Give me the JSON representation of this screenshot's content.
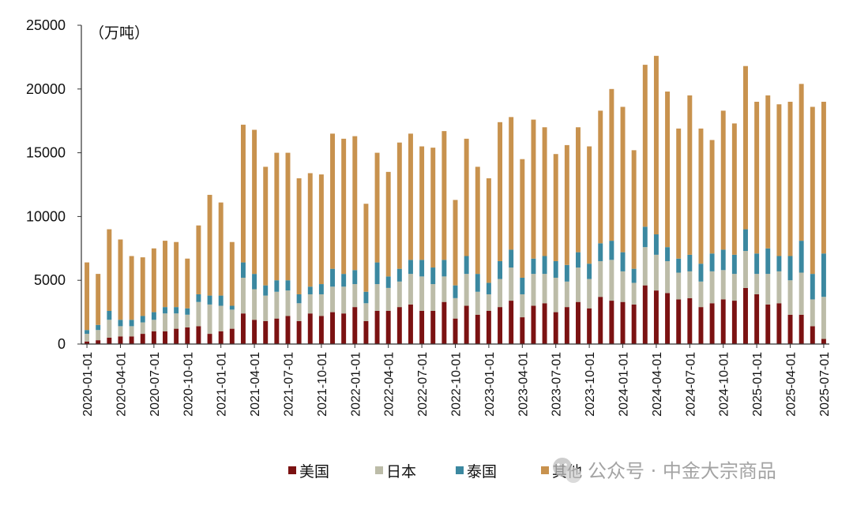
{
  "chart_data": {
    "type": "bar",
    "stacked": true,
    "unit_label": "（万吨）",
    "ylim": [
      0,
      25000
    ],
    "y_ticks": [
      "0",
      "5000",
      "10000",
      "15000",
      "20000",
      "25000"
    ],
    "x_tick_labels": [
      "2020-01-01",
      "2020-04-01",
      "2020-07-01",
      "2020-10-01",
      "2021-01-01",
      "2021-04-01",
      "2021-07-01",
      "2021-10-01",
      "2022-01-01",
      "2022-04-01",
      "2022-07-01",
      "2022-10-01",
      "2023-01-01",
      "2023-04-01",
      "2023-07-01",
      "2023-10-01",
      "2024-01-01",
      "2024-04-01",
      "2024-07-01",
      "2024-10-01",
      "2025-01-01",
      "2025-04-01",
      "2025-07-01"
    ],
    "categories": [
      "2020-01",
      "2020-02",
      "2020-03",
      "2020-04",
      "2020-05",
      "2020-06",
      "2020-07",
      "2020-08",
      "2020-09",
      "2020-10",
      "2020-11",
      "2020-12",
      "2021-01",
      "2021-02",
      "2021-03",
      "2021-04",
      "2021-05",
      "2021-06",
      "2021-07",
      "2021-08",
      "2021-09",
      "2021-10",
      "2021-11",
      "2021-12",
      "2022-01",
      "2022-02",
      "2022-03",
      "2022-04",
      "2022-05",
      "2022-06",
      "2022-07",
      "2022-08",
      "2022-09",
      "2022-10",
      "2022-11",
      "2022-12",
      "2023-01",
      "2023-02",
      "2023-03",
      "2023-04",
      "2023-05",
      "2023-06",
      "2023-07",
      "2023-08",
      "2023-09",
      "2023-10",
      "2023-11",
      "2023-12",
      "2024-01",
      "2024-02",
      "2024-03",
      "2024-04",
      "2024-05",
      "2024-06",
      "2024-07",
      "2024-08",
      "2024-09",
      "2024-10",
      "2024-11",
      "2024-12",
      "2025-01",
      "2025-02",
      "2025-03",
      "2025-04",
      "2025-05",
      "2025-06",
      "2025-07"
    ],
    "series": [
      {
        "name": "美国",
        "color": "#7b1212",
        "values": [
          200,
          300,
          500,
          600,
          600,
          800,
          1000,
          1000,
          1200,
          1300,
          1400,
          800,
          1000,
          1200,
          2400,
          1900,
          1800,
          2000,
          2200,
          1800,
          2400,
          2200,
          2500,
          2400,
          2900,
          1800,
          2600,
          2600,
          2900,
          3100,
          2600,
          2600,
          3300,
          2000,
          3000,
          2300,
          2600,
          2900,
          3400,
          2100,
          3000,
          3200,
          2500,
          2900,
          3300,
          2800,
          3700,
          3400,
          3300,
          3100,
          4600,
          4200,
          4000,
          3500,
          3600,
          2900,
          3200,
          3500,
          3400,
          4400,
          3900,
          3100,
          3200,
          2300,
          2300,
          1400,
          400
        ]
      },
      {
        "name": "日本",
        "color": "#bcbca8",
        "values": [
          600,
          800,
          1400,
          800,
          800,
          900,
          900,
          1400,
          1200,
          1000,
          1900,
          2300,
          2000,
          1500,
          2800,
          2400,
          2000,
          2100,
          2000,
          1400,
          1500,
          1700,
          2000,
          2100,
          1800,
          1400,
          2100,
          1800,
          2000,
          2400,
          2700,
          2100,
          2000,
          1600,
          2500,
          1800,
          1300,
          2200,
          2600,
          1800,
          2500,
          2300,
          2700,
          2000,
          2700,
          2300,
          2800,
          3200,
          2400,
          1700,
          3000,
          2800,
          2500,
          2100,
          2100,
          2000,
          2500,
          2300,
          2100,
          2900,
          1600,
          2400,
          2500,
          2700,
          3300,
          2100,
          3300
        ]
      },
      {
        "name": "泰国",
        "color": "#3b88a0",
        "values": [
          300,
          400,
          700,
          500,
          500,
          500,
          600,
          500,
          500,
          500,
          600,
          700,
          800,
          300,
          1200,
          1200,
          800,
          900,
          800,
          700,
          600,
          800,
          1400,
          1000,
          1100,
          900,
          1700,
          900,
          1000,
          1100,
          1300,
          1300,
          1300,
          1000,
          1400,
          1400,
          900,
          1400,
          1400,
          1300,
          1200,
          1400,
          1300,
          1300,
          1200,
          1200,
          1400,
          1500,
          1500,
          1100,
          1600,
          1600,
          1100,
          1100,
          1300,
          1400,
          1400,
          1600,
          1500,
          1700,
          1600,
          2000,
          1200,
          1900,
          2500,
          2000,
          3400
        ]
      },
      {
        "name": "其他",
        "color": "#c8924e",
        "values": [
          5300,
          4000,
          6400,
          6300,
          5000,
          4600,
          5000,
          5200,
          5100,
          3900,
          5400,
          7900,
          7300,
          5000,
          10800,
          11300,
          9300,
          10000,
          10000,
          9100,
          8900,
          8600,
          10600,
          10600,
          10500,
          6900,
          8600,
          8200,
          9900,
          9900,
          8900,
          9400,
          10100,
          6700,
          9200,
          8400,
          8200,
          10900,
          10400,
          9300,
          10900,
          10100,
          8400,
          9400,
          9800,
          9200,
          10400,
          11900,
          11400,
          9300,
          12700,
          14000,
          12200,
          10200,
          12500,
          10600,
          8900,
          10900,
          10300,
          12800,
          11900,
          12000,
          11900,
          12100,
          12300,
          13100,
          11900
        ]
      }
    ],
    "watermark": "公众号 · 中金大宗商品"
  }
}
